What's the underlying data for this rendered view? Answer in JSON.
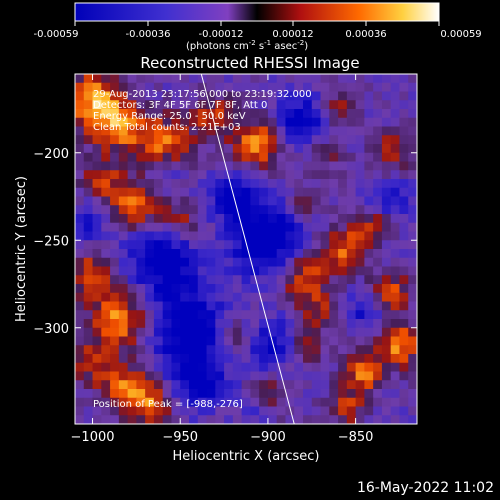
{
  "colorbar": {
    "ticks": [
      "-0.00059",
      "-0.00036",
      "-0.00012",
      "0.00012",
      "0.00036",
      "0.00059"
    ],
    "unit_base": "(photons cm",
    "unit_exp1": "-2",
    "unit_mid": " s",
    "unit_exp2": "-1",
    "unit_mid2": " asec",
    "unit_exp3": "-2",
    "unit_end": ")"
  },
  "chart_data": {
    "type": "heatmap",
    "title": "Reconstructed RHESSI Image",
    "xlabel": "Heliocentric X (arcsec)",
    "ylabel": "Heliocentric Y (arcsec)",
    "xlim": [
      -1010,
      -815
    ],
    "ylim": [
      -355,
      -155
    ],
    "x_ticks": [
      -1000,
      -950,
      -900,
      -850
    ],
    "y_ticks": [
      -200,
      -250,
      -300
    ],
    "x_tick_labels": [
      "−1000",
      "−950",
      "−900",
      "−850"
    ],
    "y_tick_labels": [
      "−200",
      "−250",
      "−300"
    ],
    "zlim": [
      -0.00059,
      0.00059
    ],
    "annotations": [
      "29-Aug-2013 23:17:56.000 to 23:19:32.000",
      "Detectors: 3F 4F 5F 6F 7F 8F, Att 0",
      "Energy Range: 25.0 - 50.0 keV",
      "Clean     Total counts: 2.21E+03"
    ],
    "peak_label": "Position of Peak = [-988,-276]",
    "peak": [
      -988,
      -276
    ],
    "limb_line": [
      [
        -938,
        -155
      ],
      [
        -885,
        -355
      ]
    ],
    "grid": false
  },
  "footer": {
    "timestamp": "16-May-2022 11:02"
  }
}
